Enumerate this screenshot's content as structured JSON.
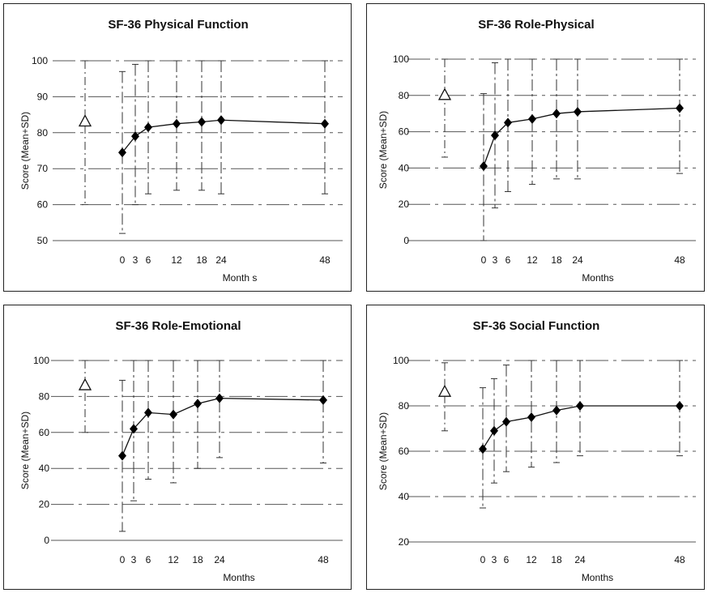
{
  "chart_data": [
    {
      "type": "line",
      "title": "SF-36 Physical Function",
      "xlabel": "Month s",
      "ylabel": "Score (Mean+SD)",
      "ylim": [
        50,
        100
      ],
      "yticks": [
        50,
        60,
        70,
        80,
        90,
        100
      ],
      "xticks": [
        0,
        3,
        6,
        12,
        18,
        24,
        48
      ],
      "grid": true,
      "reference": {
        "marker": "open-triangle",
        "value": 83,
        "low": 60,
        "high": 100
      },
      "series": [
        {
          "marker": "filled-diamond",
          "x": [
            0,
            3,
            6,
            12,
            18,
            24,
            48
          ],
          "y": [
            74.5,
            79,
            81.5,
            82.5,
            83,
            83.5,
            82.5
          ],
          "err_low": [
            52,
            60,
            63,
            64,
            64,
            63,
            63
          ],
          "err_high": [
            97,
            99,
            100,
            100,
            100,
            100,
            100
          ]
        }
      ]
    },
    {
      "type": "line",
      "title": "SF-36 Role-Physical",
      "xlabel": "Months",
      "ylabel": "Score (Mean+SD)",
      "ylim": [
        0,
        100
      ],
      "yticks": [
        0,
        20,
        40,
        60,
        80,
        100
      ],
      "xticks": [
        0,
        3,
        6,
        12,
        18,
        24,
        48
      ],
      "grid": true,
      "reference": {
        "marker": "open-triangle",
        "value": 80,
        "low": 46,
        "high": 100
      },
      "series": [
        {
          "marker": "filled-diamond",
          "x": [
            0,
            3,
            6,
            12,
            18,
            24,
            48
          ],
          "y": [
            41,
            58,
            65,
            67,
            70,
            71,
            73
          ],
          "err_low": [
            0,
            18,
            27,
            31,
            34,
            34,
            37
          ],
          "err_high": [
            81,
            98,
            100,
            100,
            100,
            100,
            100
          ]
        }
      ]
    },
    {
      "type": "line",
      "title": "SF-36 Role-Emotional",
      "xlabel": "Months",
      "ylabel": "Score (Mean+SD)",
      "ylim": [
        0,
        100
      ],
      "yticks": [
        0,
        20,
        40,
        60,
        80,
        100
      ],
      "xticks": [
        0,
        3,
        6,
        12,
        18,
        24,
        48
      ],
      "grid": true,
      "reference": {
        "marker": "open-triangle",
        "value": 86,
        "low": 60,
        "high": 100
      },
      "series": [
        {
          "marker": "filled-diamond",
          "x": [
            0,
            3,
            6,
            12,
            18,
            24,
            48
          ],
          "y": [
            47,
            62,
            71,
            70,
            76,
            79,
            78
          ],
          "err_low": [
            5,
            22,
            34,
            32,
            40,
            46,
            43
          ],
          "err_high": [
            89,
            100,
            100,
            100,
            100,
            100,
            100
          ]
        }
      ]
    },
    {
      "type": "line",
      "title": "SF-36 Social Function",
      "xlabel": "Months",
      "ylabel": "Score (Mean+SD)",
      "ylim": [
        20,
        100
      ],
      "yticks": [
        20,
        40,
        60,
        80,
        100
      ],
      "xticks": [
        0,
        3,
        6,
        12,
        18,
        24,
        48
      ],
      "grid": true,
      "reference": {
        "marker": "open-triangle",
        "value": 86,
        "low": 69,
        "high": 99
      },
      "series": [
        {
          "marker": "filled-diamond",
          "x": [
            0,
            3,
            6,
            12,
            18,
            24,
            48
          ],
          "y": [
            61,
            69,
            73,
            75,
            78,
            80,
            80
          ],
          "err_low": [
            35,
            46,
            51,
            53,
            55,
            58,
            58
          ],
          "err_high": [
            88,
            92,
            98,
            100,
            100,
            100,
            100
          ]
        }
      ]
    }
  ]
}
